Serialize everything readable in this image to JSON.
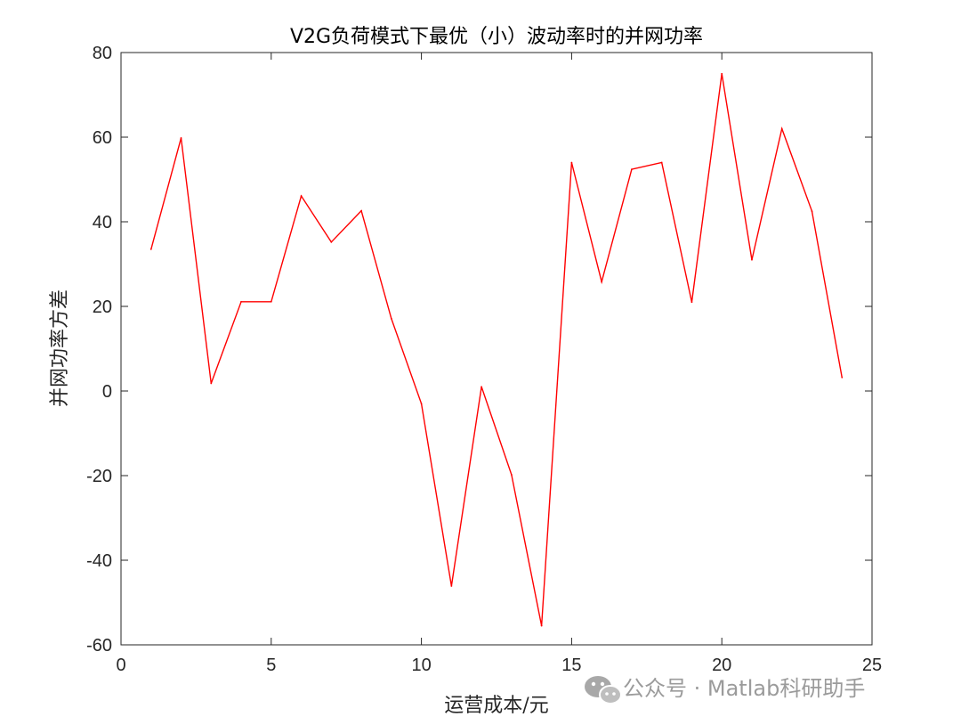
{
  "chart_data": {
    "type": "line",
    "title": "V2G负荷模式下最优（小）波动率时的并网功率",
    "xlabel": "运营成本/元",
    "ylabel": "并网功率方差",
    "xlim": [
      0,
      25
    ],
    "ylim": [
      -60,
      80
    ],
    "xticks": [
      0,
      5,
      10,
      15,
      20,
      25
    ],
    "yticks": [
      -60,
      -40,
      -20,
      0,
      20,
      40,
      60,
      80
    ],
    "grid": false,
    "series": [
      {
        "color": "#ff0000",
        "x": [
          1,
          2,
          3,
          4,
          5,
          6,
          7,
          8,
          9,
          10,
          11,
          12,
          13,
          14,
          15,
          16,
          17,
          18,
          19,
          20,
          21,
          22,
          23,
          24
        ],
        "y": [
          33.5,
          59.8,
          1.8,
          21.1,
          21.1,
          46.1,
          35.2,
          42.6,
          17.1,
          -3.0,
          -46.1,
          1.0,
          -19.8,
          -55.5,
          54.0,
          25.8,
          52.4,
          54.0,
          21.0,
          75.0,
          31.0,
          62.0,
          42.5,
          3.2
        ]
      }
    ]
  },
  "watermark": {
    "icon": "wechat-icon",
    "text": "公众号 · Matlab科研助手"
  }
}
